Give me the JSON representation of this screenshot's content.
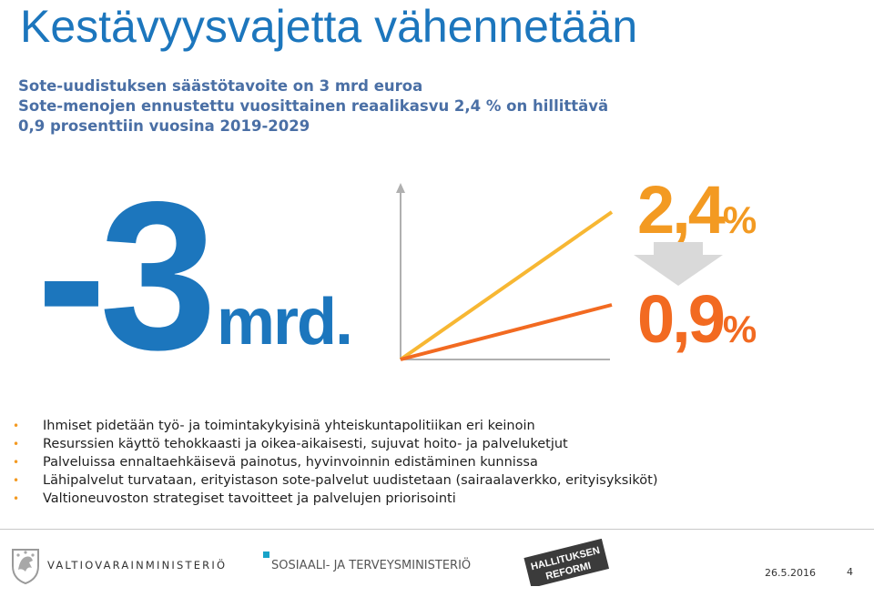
{
  "slide": {
    "title": "Kestävyysvajetta vähennetään",
    "subtitle_lines": [
      "Sote-uudistuksen säästötavoite on 3 mrd euroa",
      "Sote-menojen ennustettu vuosittainen reaalikasvu 2,4 % on hillittävä",
      "0,9 prosenttiin vuosina 2019-2029"
    ]
  },
  "savings": {
    "value": "-3",
    "unit": "mrd."
  },
  "growth": {
    "from_value": "2,4",
    "to_value": "0,9",
    "percent_sign": "%",
    "colors": {
      "from": "#f39a22",
      "to": "#f26a21",
      "arrow": "#d9d9d9"
    }
  },
  "bullets": [
    "Ihmiset pidetään työ- ja toimintakykyisinä yhteiskuntapolitiikan eri keinoin",
    "Resurssien käyttö tehokkaasti ja oikea-aikaisesti, sujuvat hoito- ja palveluketjut",
    "Palveluissa ennaltaehkäisevä painotus, hyvinvoinnin edistäminen kunnissa",
    "Lähipalvelut turvataan, erityistason sote-palvelut uudistetaan (sairaalaverkko, erityisyksiköt)",
    "Valtioneuvoston strategiset tavoitteet ja palvelujen priorisointi"
  ],
  "footer": {
    "ministry_finance": "VALTIOVARAINMINISTERIÖ",
    "ministry_social": "SOSIAALI- JA TERVEYSMINISTERIÖ",
    "reform_badge_line1": "HALLITUKSEN",
    "reform_badge_line2": "REFORMI",
    "date": "26.5.2016",
    "page_number": "4"
  },
  "colors": {
    "brand_blue": "#1c76bd",
    "subtitle": "#4a6fa5",
    "bullet": "#f39a22"
  }
}
